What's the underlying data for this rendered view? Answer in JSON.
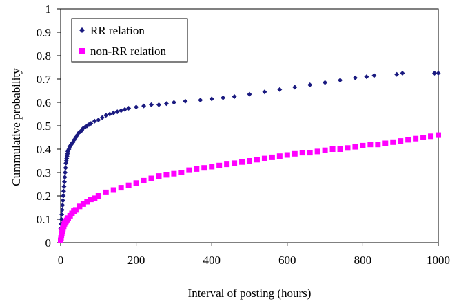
{
  "chart_data": {
    "type": "scatter",
    "title": "",
    "xlabel": "Interval of posting (hours)",
    "ylabel": "Cummulative probability",
    "xlim": [
      0,
      1000
    ],
    "ylim": [
      0,
      1
    ],
    "xticks": [
      "0",
      "200",
      "400",
      "600",
      "800",
      "1000"
    ],
    "yticks": [
      "0",
      "0.1",
      "0.2",
      "0.3",
      "0.4",
      "0.5",
      "0.6",
      "0.7",
      "0.8",
      "0.9",
      "1"
    ],
    "grid": false,
    "legend_position": "top-left",
    "series": [
      {
        "name": "RR relation",
        "marker": "diamond",
        "color": "#1a1a80",
        "x": [
          0,
          1,
          2,
          3,
          4,
          5,
          6,
          7,
          8,
          9,
          10,
          11,
          12,
          13,
          14,
          15,
          16,
          17,
          18,
          19,
          20,
          22,
          24,
          26,
          28,
          30,
          33,
          36,
          40,
          44,
          48,
          52,
          56,
          60,
          65,
          70,
          75,
          80,
          90,
          100,
          110,
          120,
          130,
          140,
          150,
          160,
          170,
          180,
          200,
          220,
          240,
          260,
          280,
          300,
          330,
          370,
          400,
          430,
          460,
          500,
          540,
          580,
          620,
          660,
          700,
          740,
          780,
          810,
          830,
          890,
          905,
          990,
          1000
        ],
        "y": [
          0.06,
          0.08,
          0.1,
          0.12,
          0.14,
          0.16,
          0.18,
          0.2,
          0.22,
          0.24,
          0.26,
          0.28,
          0.3,
          0.32,
          0.34,
          0.35,
          0.36,
          0.37,
          0.38,
          0.39,
          0.395,
          0.4,
          0.41,
          0.415,
          0.42,
          0.425,
          0.43,
          0.44,
          0.45,
          0.46,
          0.47,
          0.475,
          0.48,
          0.49,
          0.495,
          0.5,
          0.505,
          0.51,
          0.52,
          0.525,
          0.535,
          0.545,
          0.55,
          0.555,
          0.56,
          0.565,
          0.57,
          0.575,
          0.58,
          0.585,
          0.59,
          0.59,
          0.595,
          0.6,
          0.605,
          0.61,
          0.615,
          0.62,
          0.625,
          0.635,
          0.645,
          0.655,
          0.665,
          0.675,
          0.685,
          0.695,
          0.705,
          0.71,
          0.715,
          0.72,
          0.725,
          0.725,
          0.725
        ]
      },
      {
        "name": "non-RR relation",
        "marker": "square",
        "color": "#ff00ff",
        "x": [
          0,
          1,
          2,
          3,
          4,
          5,
          6,
          8,
          10,
          12,
          14,
          16,
          18,
          20,
          25,
          30,
          35,
          40,
          50,
          60,
          70,
          80,
          90,
          100,
          120,
          140,
          160,
          180,
          200,
          220,
          240,
          260,
          280,
          300,
          320,
          340,
          360,
          380,
          400,
          420,
          440,
          460,
          480,
          500,
          520,
          540,
          560,
          580,
          600,
          620,
          640,
          660,
          680,
          700,
          720,
          740,
          760,
          780,
          800,
          820,
          840,
          860,
          880,
          900,
          920,
          940,
          960,
          980,
          1000
        ],
        "y": [
          0.01,
          0.02,
          0.03,
          0.04,
          0.05,
          0.055,
          0.06,
          0.07,
          0.08,
          0.085,
          0.09,
          0.095,
          0.1,
          0.105,
          0.115,
          0.125,
          0.135,
          0.14,
          0.155,
          0.165,
          0.175,
          0.185,
          0.19,
          0.2,
          0.215,
          0.225,
          0.235,
          0.245,
          0.255,
          0.265,
          0.275,
          0.285,
          0.29,
          0.295,
          0.3,
          0.31,
          0.315,
          0.32,
          0.325,
          0.33,
          0.335,
          0.34,
          0.345,
          0.35,
          0.355,
          0.36,
          0.365,
          0.37,
          0.375,
          0.38,
          0.385,
          0.385,
          0.39,
          0.395,
          0.4,
          0.4,
          0.405,
          0.41,
          0.415,
          0.42,
          0.42,
          0.425,
          0.43,
          0.435,
          0.44,
          0.445,
          0.45,
          0.455,
          0.46
        ]
      }
    ]
  }
}
